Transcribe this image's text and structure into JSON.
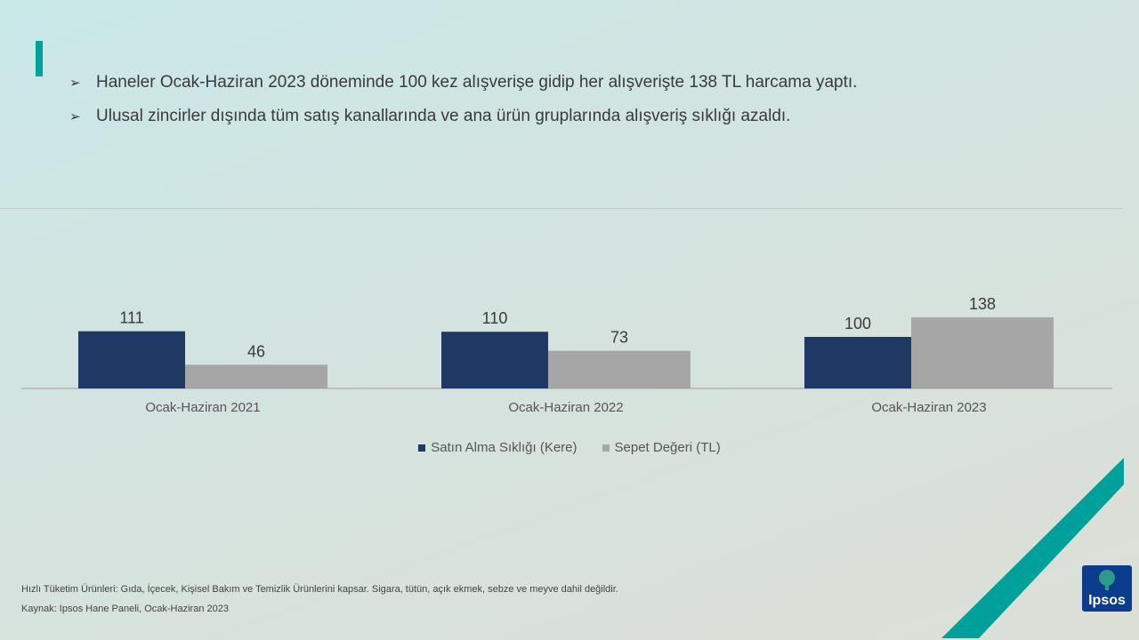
{
  "bullets": [
    "Haneler Ocak-Haziran  2023 döneminde  100 kez alışverişe gidip her alışverişte 138 TL harcama yaptı.",
    "Ulusal zincirler dışında tüm satış kanallarında  ve ana ürün gruplarında  alışveriş sıklığı azaldı."
  ],
  "colors": {
    "accent": "#00a19a",
    "series1": "#1f3864",
    "series2": "#a6a6a6",
    "logo": "#0c3c8c"
  },
  "chart_data": {
    "type": "bar",
    "categories": [
      "Ocak-Haziran  2021",
      "Ocak-Haziran  2022",
      "Ocak-Haziran  2023"
    ],
    "series": [
      {
        "name": "Satın Alma Sıklığı (Kere)",
        "values": [
          111,
          110,
          100
        ]
      },
      {
        "name": "Sepet Değeri (TL)",
        "values": [
          46,
          73,
          138
        ]
      }
    ],
    "title": "",
    "xlabel": "",
    "ylabel": "",
    "ylim": [
      0,
      138
    ],
    "legend": "bottom",
    "grid": false,
    "data_labels": true
  },
  "footnotes": {
    "scope": "Hızlı Tüketim Ürünleri: Gıda, İçecek, Kişisel Bakım ve Temizlik Ürünlerini kapsar. Sigara, tütün, açık ekmek, sebze ve meyve dahil değildir.",
    "source": "Kaynak: Ipsos Hane Paneli, Ocak-Haziran 2023"
  },
  "logo": {
    "text": "Ipsos"
  }
}
